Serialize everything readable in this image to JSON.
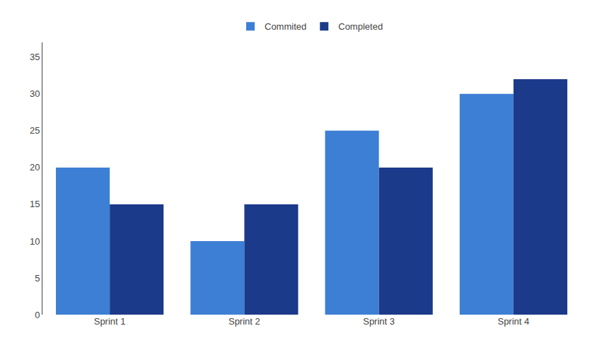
{
  "chart_data": {
    "type": "bar",
    "categories": [
      "Sprint 1",
      "Sprint 2",
      "Sprint 3",
      "Sprint 4"
    ],
    "series": [
      {
        "name": "Commited",
        "color": "#3D7FD4",
        "values": [
          20,
          10,
          25,
          30
        ]
      },
      {
        "name": "Completed",
        "color": "#1C3A8A",
        "values": [
          15,
          15,
          20,
          32
        ]
      }
    ],
    "ylim": [
      0,
      37
    ],
    "yticks": [
      0,
      5,
      10,
      15,
      20,
      25,
      30,
      35
    ],
    "grid": false,
    "legend": "upper center"
  }
}
